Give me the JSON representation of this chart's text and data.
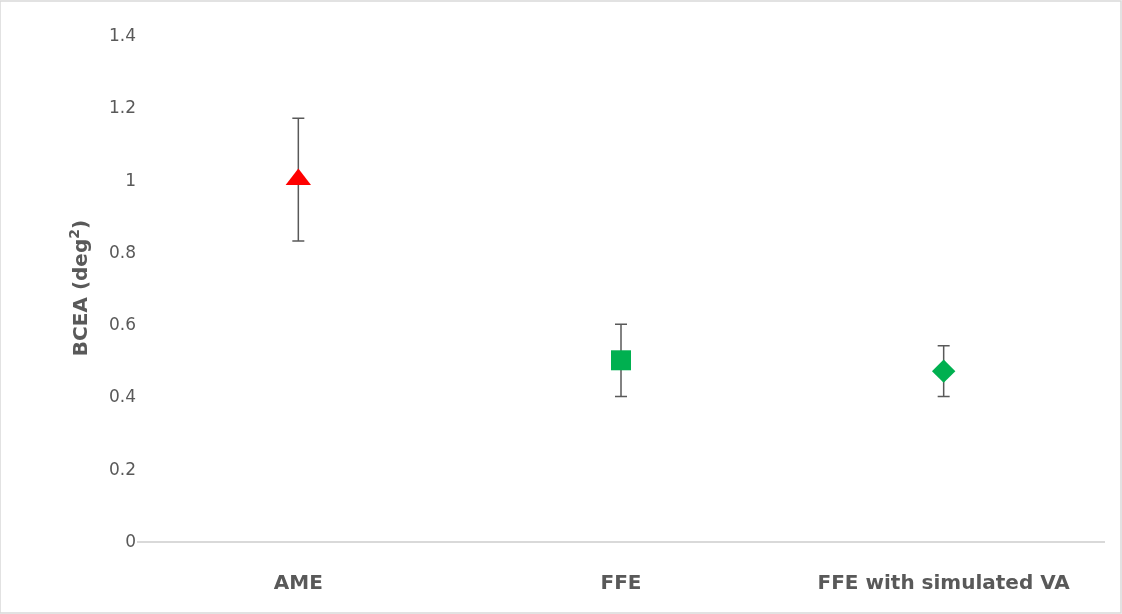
{
  "chart_data": {
    "type": "scatter",
    "ylabel": "BCEA (deg$^{2}$)",
    "categories": [
      "AME",
      "FFE",
      "FFE with simulated VA"
    ],
    "series": [
      {
        "color": "#ff0000",
        "marker": "triangle",
        "values": [
          1.0,
          null,
          null
        ],
        "errors": [
          0.17,
          null,
          null
        ]
      },
      {
        "color": "#00b050",
        "marker": "square",
        "values": [
          null,
          0.5,
          null
        ],
        "errors": [
          null,
          0.1,
          null
        ]
      },
      {
        "color": "#00b050",
        "marker": "diamond",
        "values": [
          null,
          null,
          0.47
        ],
        "errors": [
          null,
          null,
          0.07
        ]
      }
    ],
    "ylim": [
      0,
      1.4
    ],
    "yticks": [
      0,
      0.2,
      0.4,
      0.6,
      0.8,
      1,
      1.2,
      1.4
    ],
    "grid": false
  }
}
